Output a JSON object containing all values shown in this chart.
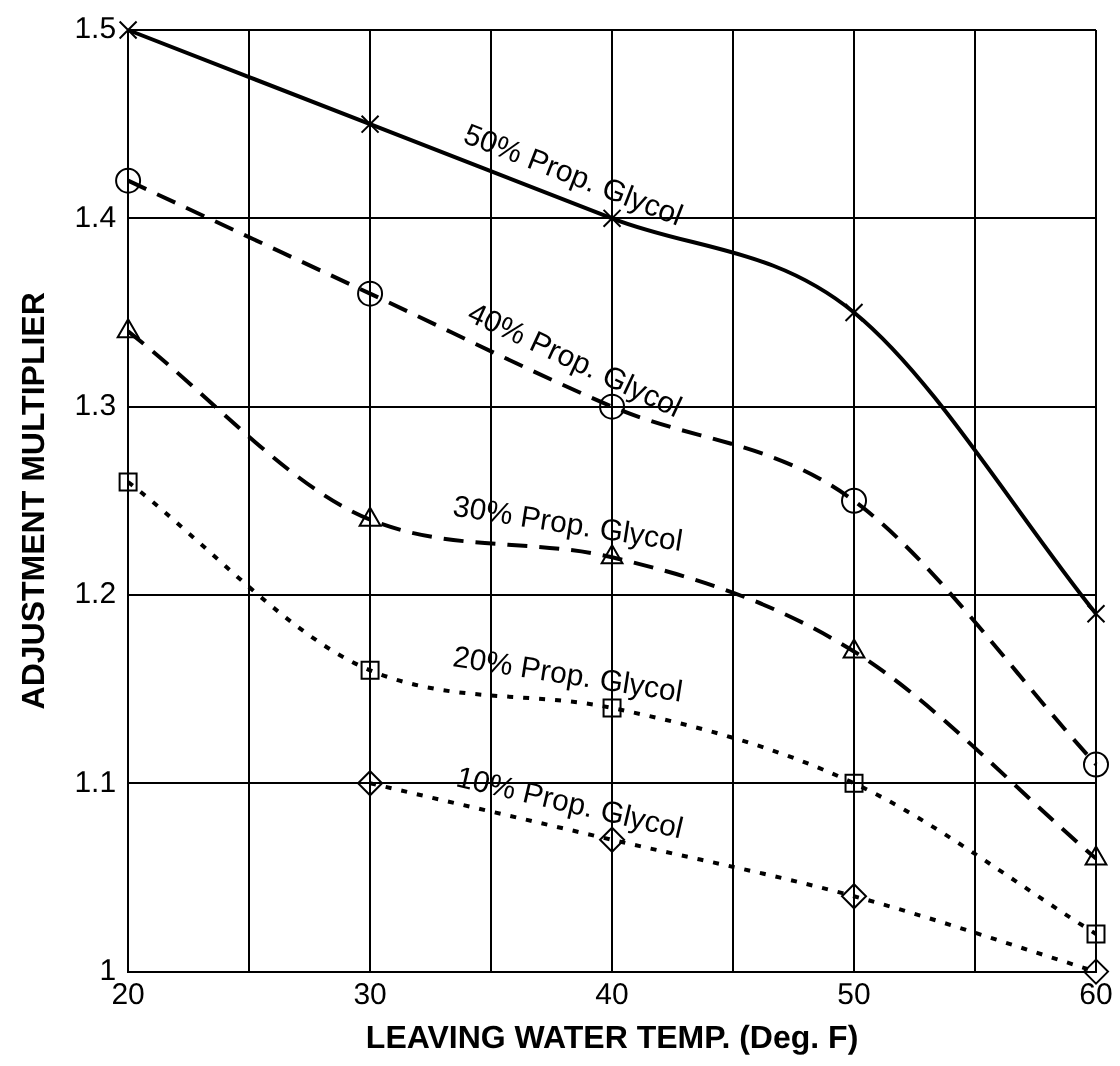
{
  "chart_data": {
    "type": "line",
    "xlabel": "LEAVING WATER TEMP. (Deg. F)",
    "ylabel": "ADJUSTMENT MULTIPLIER",
    "x": [
      20,
      30,
      40,
      50,
      60
    ],
    "xlim": [
      20,
      60
    ],
    "xticks": [
      20,
      {
        "value": 25,
        "label": null
      },
      30,
      {
        "value": 35,
        "label": null
      },
      40,
      {
        "value": 45,
        "label": null
      },
      50,
      {
        "value": 55,
        "label": null
      },
      60
    ],
    "ylim": [
      1,
      1.5
    ],
    "yticks": [
      1,
      1.1,
      1.2,
      1.3,
      1.4,
      1.5
    ],
    "grid": true,
    "legend": false,
    "series": [
      {
        "name": "50% Prop. Glycol",
        "color": "#000000",
        "values": [
          1.5,
          1.45,
          1.4,
          1.35,
          1.19
        ],
        "marker": "cross",
        "line_style": "solid"
      },
      {
        "name": "40% Prop. Glycol",
        "color": "#000000",
        "values": [
          1.42,
          1.36,
          1.3,
          1.25,
          1.11
        ],
        "marker": "circle",
        "line_style": "dashed"
      },
      {
        "name": "30% Prop. Glycol",
        "color": "#000000",
        "values": [
          1.34,
          1.24,
          1.22,
          1.17,
          1.06
        ],
        "marker": "triangle",
        "line_style": "dashed"
      },
      {
        "name": "20% Prop. Glycol",
        "color": "#000000",
        "values": [
          1.26,
          1.16,
          1.14,
          1.1,
          1.02
        ],
        "marker": "square",
        "line_style": "dotted"
      },
      {
        "name": "10% Prop. Glycol",
        "color": "#000000",
        "values": [
          null,
          1.1,
          1.07,
          1.04,
          1.0
        ],
        "marker": "diamond",
        "line_style": "dotted"
      }
    ]
  }
}
